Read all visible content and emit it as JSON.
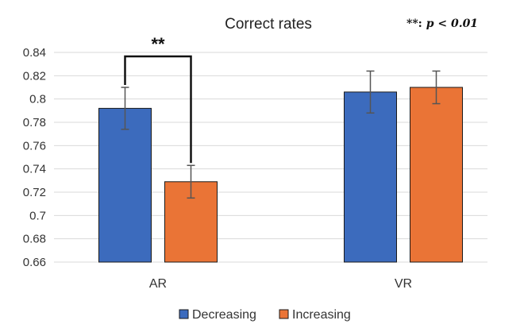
{
  "chart_data": {
    "type": "bar",
    "title": "Correct rates",
    "xlabel": "",
    "ylabel": "",
    "categories": [
      "AR",
      "VR"
    ],
    "ylim": [
      0.66,
      0.84
    ],
    "ytick_step": 0.02,
    "yticks": [
      "0.84",
      "0.82",
      "0.8",
      "0.78",
      "0.76",
      "0.74",
      "0.72",
      "0.7",
      "0.68",
      "0.66"
    ],
    "grid": true,
    "legend_position": "bottom",
    "series": [
      {
        "name": "Decreasing",
        "color": "#3c6bbd",
        "values": [
          0.792,
          0.806
        ],
        "errors": [
          0.018,
          0.018
        ]
      },
      {
        "name": "Increasing",
        "color": "#ea7436",
        "values": [
          0.729,
          0.81
        ],
        "errors": [
          0.014,
          0.014
        ]
      }
    ],
    "annotations": {
      "significance": "**",
      "note_prefix": "**: ",
      "note_formula": "p < 0.01"
    }
  }
}
